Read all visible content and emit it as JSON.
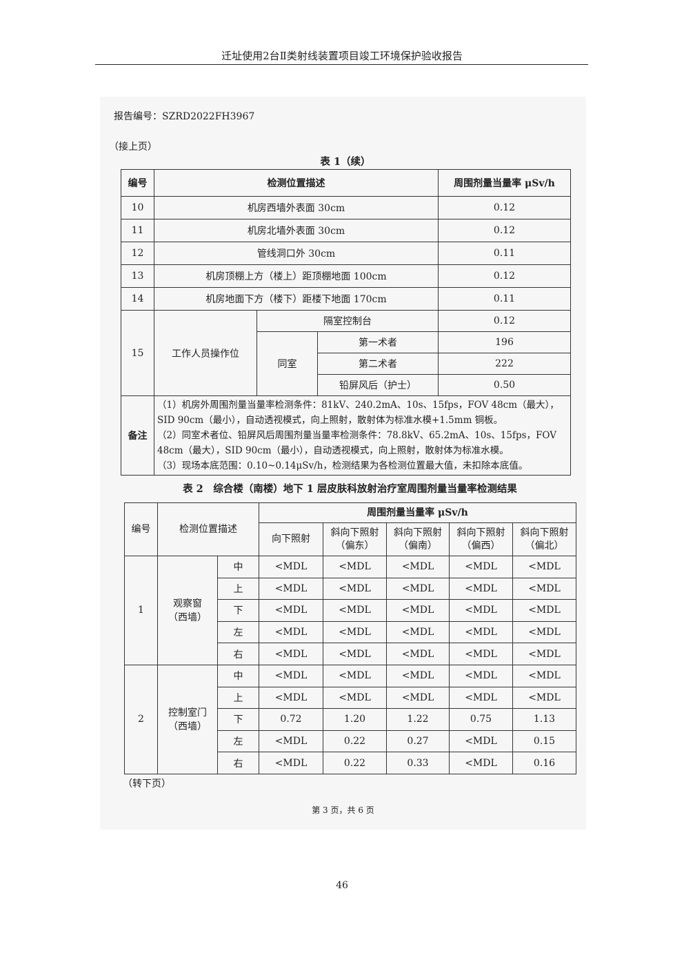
{
  "header": {
    "title": "迁址使用2台Ⅱ类射线装置项目竣工环境保护验收报告"
  },
  "report_number": "报告编号：SZRD2022FH3967",
  "continued_from": "（接上页）",
  "table1": {
    "caption": "表 1（续）",
    "headers": [
      "编号",
      "检测位置描述",
      "周围剂量当量率 μSv/h"
    ],
    "rows": [
      {
        "no": "10",
        "desc": "机房西墙外表面 30cm",
        "value": "0.12"
      },
      {
        "no": "11",
        "desc": "机房北墙外表面 30cm",
        "value": "0.12"
      },
      {
        "no": "12",
        "desc": "管线洞口外 30cm",
        "value": "0.11"
      },
      {
        "no": "13",
        "desc": "机房顶棚上方（楼上）距顶棚地面 100cm",
        "value": "0.12"
      },
      {
        "no": "14",
        "desc": "机房地面下方（楼下）距楼下地面 170cm",
        "value": "0.11"
      }
    ],
    "row15": {
      "no": "15",
      "desc": "工作人员操作位",
      "adjacent": {
        "label": "隔室控制台",
        "value": "0.12"
      },
      "same_room_label": "同室",
      "same_room": [
        {
          "label": "第一术者",
          "value": "196"
        },
        {
          "label": "第二术者",
          "value": "222"
        },
        {
          "label": "铅屏风后（护士）",
          "value": "0.50"
        }
      ]
    },
    "notes_label": "备注",
    "notes": [
      "（1）机房外周围剂量当量率检测条件：81kV、240.2mA、10s、15fps，FOV 48cm（最大），SID 90cm（最小），自动透视模式，向上照射，散射体为标准水模+1.5mm 铜板。",
      "（2）同室术者位、铅屏风后周围剂量当量率检测条件：78.8kV、65.2mA、10s、15fps，FOV 48cm（最大），SID 90cm（最小），自动透视模式，向上照射，散射体为标准水模。",
      "（3）现场本底范围：0.10~0.14μSv/h，检测结果为各检测位置最大值，未扣除本底值。"
    ]
  },
  "table2": {
    "caption": "表 2　综合楼（南楼）地下 1 层皮肤科放射治疗室周围剂量当量率检测结果",
    "headers": {
      "no": "编号",
      "desc": "检测位置描述",
      "group": "周围剂量当量率 μSv/h",
      "cols": [
        [
          "向下照射"
        ],
        [
          "斜向下照射",
          "（偏东）"
        ],
        [
          "斜向下照射",
          "（偏南）"
        ],
        [
          "斜向下照射",
          "（偏西）"
        ],
        [
          "斜向下照射",
          "（偏北）"
        ]
      ]
    },
    "groups": [
      {
        "no": "1",
        "loc": [
          "观察窗",
          "（西墙）"
        ],
        "rows": [
          {
            "pos": "中",
            "v": [
              "<MDL",
              "<MDL",
              "<MDL",
              "<MDL",
              "<MDL"
            ]
          },
          {
            "pos": "上",
            "v": [
              "<MDL",
              "<MDL",
              "<MDL",
              "<MDL",
              "<MDL"
            ]
          },
          {
            "pos": "下",
            "v": [
              "<MDL",
              "<MDL",
              "<MDL",
              "<MDL",
              "<MDL"
            ]
          },
          {
            "pos": "左",
            "v": [
              "<MDL",
              "<MDL",
              "<MDL",
              "<MDL",
              "<MDL"
            ]
          },
          {
            "pos": "右",
            "v": [
              "<MDL",
              "<MDL",
              "<MDL",
              "<MDL",
              "<MDL"
            ]
          }
        ]
      },
      {
        "no": "2",
        "loc": [
          "控制室门",
          "（西墙）"
        ],
        "rows": [
          {
            "pos": "中",
            "v": [
              "<MDL",
              "<MDL",
              "<MDL",
              "<MDL",
              "<MDL"
            ]
          },
          {
            "pos": "上",
            "v": [
              "<MDL",
              "<MDL",
              "<MDL",
              "<MDL",
              "<MDL"
            ]
          },
          {
            "pos": "下",
            "v": [
              "0.72",
              "1.20",
              "1.22",
              "0.75",
              "1.13"
            ]
          },
          {
            "pos": "左",
            "v": [
              "<MDL",
              "0.22",
              "0.27",
              "<MDL",
              "0.15"
            ]
          },
          {
            "pos": "右",
            "v": [
              "<MDL",
              "0.22",
              "0.33",
              "<MDL",
              "0.16"
            ]
          }
        ]
      }
    ]
  },
  "continued_next": "（转下页）",
  "inner_footer": "第 3 页，共 6 页",
  "page_number": "46"
}
